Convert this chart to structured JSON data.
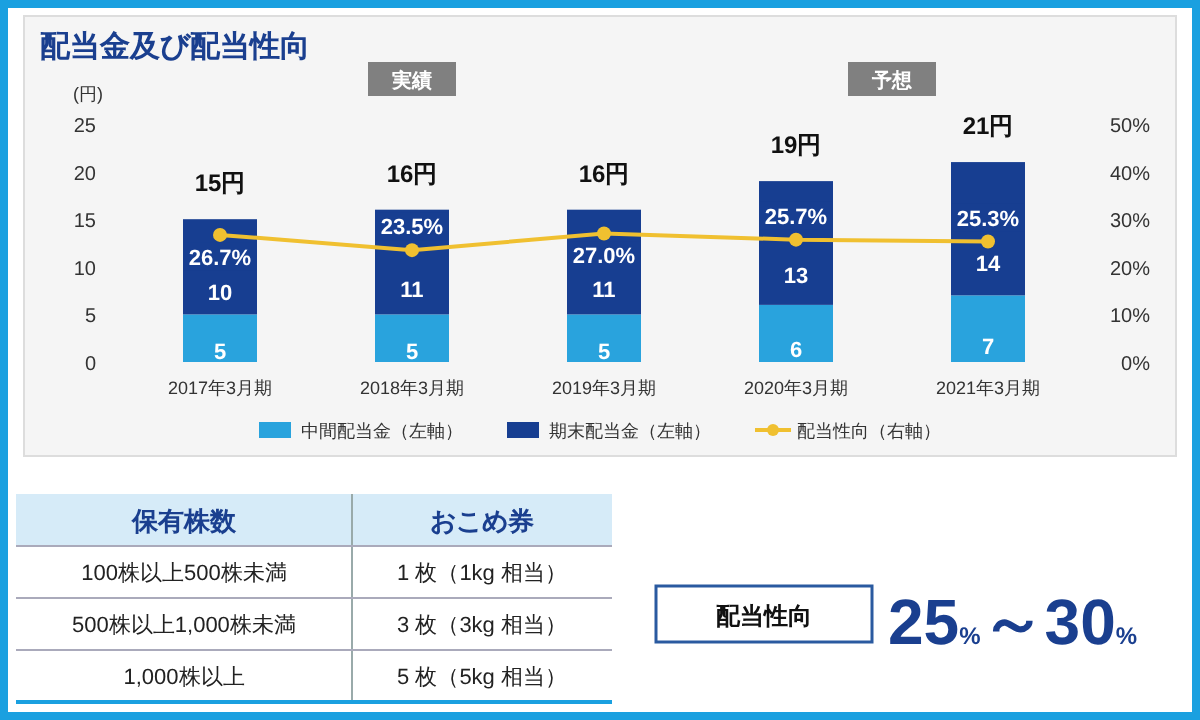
{
  "chart_data": [
    {
      "type": "bar",
      "title": "配当金及び配当性向",
      "ylabel": "(円)",
      "stacked": true,
      "legend": "bottom",
      "categories": [
        "2017年3月期",
        "2018年3月期",
        "2019年3月期",
        "2020年3月期",
        "2021年3月期"
      ],
      "series": [
        {
          "name": "中間配当金（左軸）",
          "color": "#29a3dd",
          "values": [
            5,
            5,
            5,
            6,
            7
          ],
          "value_labels": [
            "5",
            "5",
            "5",
            "6",
            "7"
          ]
        },
        {
          "name": "期末配当金（左軸）",
          "color": "#173e91",
          "values": [
            10,
            11,
            11,
            13,
            14
          ],
          "value_labels": [
            "10",
            "11",
            "11",
            "13",
            "14"
          ]
        },
        {
          "name": "配当性向（右軸）",
          "type": "line",
          "axis": "y2",
          "marker": "circle",
          "color": "#f0c030",
          "values": [
            26.7,
            23.5,
            27.0,
            25.7,
            25.3
          ],
          "value_labels": [
            "26.7%",
            "23.5%",
            "27.0%",
            "25.7%",
            "25.3%"
          ]
        }
      ],
      "totals": [
        "15円",
        "16円",
        "16円",
        "19円",
        "21円"
      ],
      "ylim": [
        0,
        25
      ],
      "yticks": [
        0,
        5,
        10,
        15,
        20,
        25
      ],
      "y2lim": [
        0,
        50
      ],
      "y2ticks": [
        {
          "value": 0,
          "label": "0%"
        },
        {
          "value": 10,
          "label": "10%"
        },
        {
          "value": 20,
          "label": "20%"
        },
        {
          "value": 30,
          "label": "30%"
        },
        {
          "value": 40,
          "label": "40%"
        },
        {
          "value": 50,
          "label": "50%"
        }
      ],
      "annotations": [
        "実績",
        "予想"
      ]
    },
    {
      "type": "other",
      "annotations": [
        "保有株数",
        "おこめ券",
        "100株以上500株未満",
        "1 枚（1kg 相当）",
        "500株以上1,000株未満",
        "3 枚（3kg 相当）",
        "1,000株以上",
        "5 枚（5kg 相当）",
        "配当性向",
        "25%～30%"
      ]
    }
  ]
}
